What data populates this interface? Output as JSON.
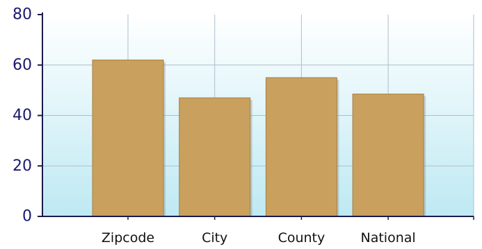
{
  "chart_data": {
    "type": "bar",
    "title": "",
    "xlabel": "",
    "ylabel": "",
    "categories": [
      "Zipcode",
      "City",
      "County",
      "National"
    ],
    "values": [
      62,
      47,
      55,
      48.5
    ],
    "ylim": [
      0,
      80
    ],
    "yticks": [
      "0",
      "20",
      "40",
      "60",
      "80"
    ],
    "grid": true,
    "legend": "none"
  },
  "colors": {
    "bar_fill": "#C9A05E",
    "bar_edge": "#A67F42",
    "plot_bg_top": "#FFFFFF",
    "plot_bg_bottom": "#BEE9F3",
    "grid": "#AEBFC8",
    "axis": "#1A1A4A",
    "ytick_text": "#1A1A6E",
    "xtick_text": "#111111"
  }
}
